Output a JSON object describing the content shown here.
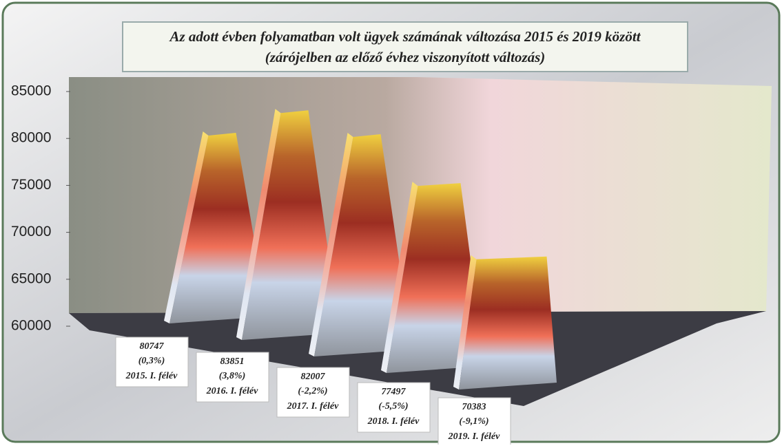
{
  "chart_data": {
    "type": "pyramid3d",
    "title": "Az adott évben folyamatban volt ügyek számának változása 2015 és 2019 között",
    "subtitle": "(zárójelben az előző évhez viszonyított változás)",
    "categories": [
      "2015. I. félév",
      "2016. I. félév",
      "2017. I. félév",
      "2018. I. félév",
      "2019. I. félév"
    ],
    "values": [
      80747,
      83851,
      82007,
      77497,
      70383
    ],
    "change_labels": [
      "(0,3%)",
      "(3,8%)",
      "(-2,2%)",
      "(-5,5%)",
      "(-9,1%)"
    ],
    "ylim": [
      60000,
      85000
    ],
    "yticks": [
      60000,
      65000,
      70000,
      75000,
      80000,
      85000
    ]
  }
}
